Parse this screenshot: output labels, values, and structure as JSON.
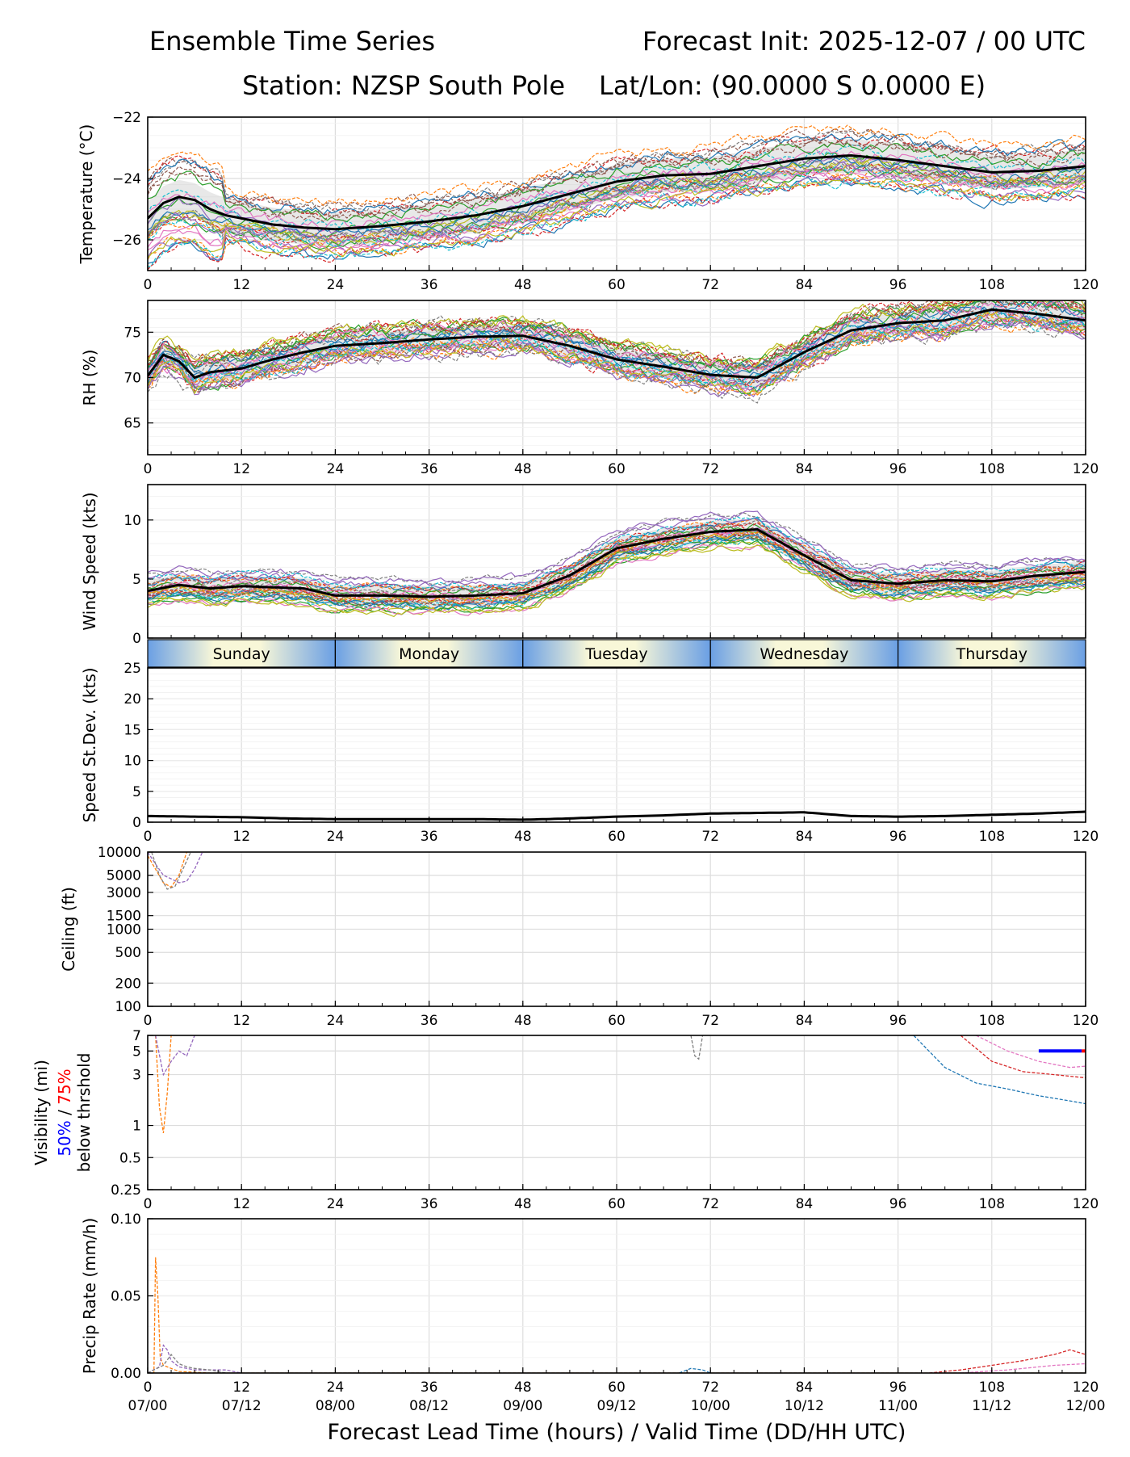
{
  "header": {
    "title_left": "Ensemble Time Series",
    "title_right": "Forecast Init: 2025-12-07 / 00 UTC",
    "station": "Station: NZSP South Pole",
    "latlon": "Lat/Lon: (90.0000 S 0.0000 E)"
  },
  "xaxis": {
    "ticks": [
      0,
      12,
      24,
      36,
      48,
      60,
      72,
      84,
      96,
      108,
      120
    ],
    "tick_labels": [
      "0",
      "12",
      "24",
      "36",
      "48",
      "60",
      "72",
      "84",
      "96",
      "108",
      "120"
    ],
    "valid_labels": [
      "07/00",
      "07/12",
      "08/00",
      "08/12",
      "09/00",
      "09/12",
      "10/00",
      "10/12",
      "11/00",
      "11/12",
      "12/00"
    ],
    "xlabel": "Forecast Lead Time (hours) / Valid Time (DD/HH UTC)"
  },
  "day_band": {
    "days": [
      "Sunday",
      "Monday",
      "Tuesday",
      "Wednesday",
      "Thursday"
    ]
  },
  "colors": {
    "mean_line": "#000000",
    "spread": "#bdbdbd",
    "visibility_50": "#0000ff",
    "visibility_75": "#ff0000",
    "ensemble": [
      "#1f77b4",
      "#ff7f0e",
      "#2ca02c",
      "#d62728",
      "#9467bd",
      "#8c564b",
      "#e377c2",
      "#7f7f7f",
      "#bcbd22",
      "#17becf"
    ]
  },
  "chart_data": [
    {
      "id": "temperature",
      "type": "line",
      "ylabel": "Temperature (°C)",
      "ylim": [
        -27,
        -22
      ],
      "yticks": [
        -26,
        -24,
        -22
      ],
      "ytick_labels": [
        "−26",
        "−24",
        "−22"
      ],
      "mean": {
        "x": [
          0,
          2,
          4,
          6,
          8,
          10,
          12,
          16,
          20,
          24,
          30,
          36,
          42,
          48,
          54,
          60,
          66,
          72,
          78,
          84,
          90,
          96,
          102,
          108,
          114,
          120
        ],
        "y": [
          -25.3,
          -24.8,
          -24.6,
          -24.7,
          -25.0,
          -25.2,
          -25.3,
          -25.5,
          -25.6,
          -25.65,
          -25.55,
          -25.4,
          -25.2,
          -24.9,
          -24.5,
          -24.1,
          -23.9,
          -23.85,
          -23.6,
          -23.35,
          -23.25,
          -23.4,
          -23.6,
          -23.8,
          -23.75,
          -23.6
        ]
      },
      "spread": 0.55,
      "members": 30
    },
    {
      "id": "rh",
      "type": "line",
      "ylabel": "RH (%)",
      "ylim": [
        61.5,
        78.5
      ],
      "yticks": [
        65,
        70,
        75
      ],
      "ytick_labels": [
        "65",
        "70",
        "75"
      ],
      "mean": {
        "x": [
          0,
          2,
          4,
          6,
          8,
          12,
          16,
          20,
          24,
          30,
          36,
          42,
          48,
          54,
          60,
          66,
          72,
          78,
          84,
          90,
          96,
          102,
          108,
          114,
          120
        ],
        "y": [
          70.2,
          72.5,
          71.8,
          70.0,
          70.6,
          71.0,
          72.0,
          72.8,
          73.5,
          73.8,
          74.2,
          74.5,
          74.6,
          73.5,
          72.0,
          71.2,
          70.3,
          70.0,
          72.8,
          75.2,
          76.0,
          76.3,
          77.5,
          77.0,
          76.3
        ]
      },
      "spread": 1.2,
      "members": 30
    },
    {
      "id": "wind",
      "type": "line",
      "ylabel": "Wind Speed (kts)",
      "ylim": [
        0,
        13
      ],
      "yticks": [
        0,
        5,
        10
      ],
      "ytick_labels": [
        "0",
        "5",
        "10"
      ],
      "mean": {
        "x": [
          0,
          4,
          8,
          12,
          16,
          20,
          24,
          30,
          36,
          42,
          48,
          54,
          60,
          66,
          72,
          78,
          84,
          90,
          96,
          102,
          108,
          114,
          120
        ],
        "y": [
          4.0,
          4.5,
          4.2,
          4.4,
          4.3,
          4.2,
          3.6,
          3.6,
          3.5,
          3.6,
          3.8,
          5.3,
          7.6,
          8.4,
          9.0,
          9.2,
          7.0,
          4.9,
          4.6,
          4.9,
          4.8,
          5.3,
          5.6
        ]
      },
      "spread": 0.9,
      "members": 30
    },
    {
      "id": "speed_sd",
      "type": "line",
      "ylabel": "Speed St.Dev. (kts)",
      "ylim": [
        0,
        25
      ],
      "yticks": [
        0,
        5,
        10,
        15,
        20,
        25
      ],
      "ytick_labels": [
        "0",
        "5",
        "10",
        "15",
        "20",
        "25"
      ],
      "mean": {
        "x": [
          0,
          6,
          12,
          18,
          24,
          30,
          36,
          42,
          48,
          54,
          60,
          66,
          72,
          78,
          84,
          90,
          96,
          102,
          108,
          114,
          120
        ],
        "y": [
          1.0,
          0.9,
          0.8,
          0.6,
          0.5,
          0.5,
          0.5,
          0.5,
          0.4,
          0.6,
          0.9,
          1.1,
          1.4,
          1.5,
          1.6,
          1.0,
          0.9,
          1.0,
          1.2,
          1.4,
          1.7
        ]
      }
    },
    {
      "id": "ceiling",
      "type": "line",
      "ylabel": "Ceiling (ft)",
      "scale": "log",
      "ylim": [
        100,
        10000
      ],
      "yticks": [
        100,
        200,
        500,
        1000,
        1500,
        3000,
        5000,
        10000
      ],
      "ytick_labels": [
        "100",
        "200",
        "500",
        "1000",
        "1500",
        "3000",
        "5000",
        "10000"
      ],
      "members": [
        {
          "x": [
            0,
            1,
            2,
            3,
            4,
            5
          ],
          "y": [
            9000,
            6000,
            4000,
            3500,
            5000,
            10000
          ]
        },
        {
          "x": [
            0,
            1,
            2,
            3,
            4,
            5,
            6,
            7
          ],
          "y": [
            10000,
            7000,
            5000,
            4500,
            4000,
            4200,
            6000,
            10000
          ]
        },
        {
          "x": [
            0.5,
            1.5,
            2.5,
            3.5,
            4.5,
            5.5
          ],
          "y": [
            10000,
            5000,
            3300,
            3600,
            6000,
            10000
          ]
        }
      ]
    },
    {
      "id": "visibility",
      "type": "line",
      "ylabel": "Visibility (mi)",
      "ylabel_50": "50%",
      "ylabel_sep": " / ",
      "ylabel_75": "75%",
      "ylabel_below": "below thrshold",
      "scale": "log",
      "ylim": [
        0.25,
        7
      ],
      "yticks": [
        0.25,
        0.5,
        1,
        3,
        5,
        7
      ],
      "ytick_labels": [
        "0.25",
        "0.5",
        "1",
        "3",
        "5",
        "7"
      ],
      "members": [
        {
          "x": [
            1,
            1.5,
            2,
            2.5,
            3
          ],
          "y": [
            7,
            1.5,
            0.85,
            2,
            7
          ]
        },
        {
          "x": [
            1,
            2,
            3,
            4,
            5,
            6
          ],
          "y": [
            7,
            3,
            4,
            5,
            4.5,
            7
          ]
        },
        {
          "x": [
            69.5,
            70,
            70.5,
            71
          ],
          "y": [
            7,
            4.5,
            4.2,
            7
          ]
        },
        {
          "x": [
            98,
            102,
            106,
            110,
            114,
            118,
            120
          ],
          "y": [
            7,
            3.5,
            2.5,
            2.2,
            1.9,
            1.7,
            1.6
          ]
        },
        {
          "x": [
            104,
            108,
            112,
            116,
            120
          ],
          "y": [
            7,
            4,
            3.2,
            3,
            2.8
          ]
        },
        {
          "x": [
            106,
            110,
            114,
            118,
            120
          ],
          "y": [
            7,
            5,
            4,
            3.5,
            3.6
          ]
        }
      ],
      "line_50": {
        "x": [
          114,
          119.5
        ],
        "y": 5
      },
      "line_75": {
        "x": [
          119.5,
          120
        ],
        "y": 5
      }
    },
    {
      "id": "precip",
      "type": "line",
      "ylabel": "Precip Rate (mm/h)",
      "ylim": [
        0,
        0.1
      ],
      "yticks": [
        0,
        0.05,
        0.1
      ],
      "ytick_labels": [
        "0.00",
        "0.05",
        "0.10"
      ],
      "members": [
        {
          "x": [
            0,
            0.8,
            1,
            1.3,
            1.6,
            2,
            3,
            4,
            8,
            120
          ],
          "y": [
            0,
            0,
            0.075,
            0.05,
            0.01,
            0.005,
            0.003,
            0.001,
            0,
            0
          ]
        },
        {
          "x": [
            0,
            1.5,
            2,
            2.5,
            3,
            4,
            6,
            10,
            12
          ],
          "y": [
            0,
            0.004,
            0.018,
            0.015,
            0.008,
            0.004,
            0.002,
            0.002,
            0
          ]
        },
        {
          "x": [
            0,
            2,
            3,
            4,
            5,
            6,
            8,
            10
          ],
          "y": [
            0,
            0.005,
            0.012,
            0.006,
            0.004,
            0.003,
            0.002,
            0
          ]
        },
        {
          "x": [
            68,
            69.5,
            71,
            72
          ],
          "y": [
            0,
            0.003,
            0.002,
            0
          ]
        },
        {
          "x": [
            100,
            104,
            108,
            112,
            116,
            118,
            120
          ],
          "y": [
            0,
            0.002,
            0.005,
            0.008,
            0.012,
            0.015,
            0.012
          ]
        },
        {
          "x": [
            104,
            110,
            116,
            120
          ],
          "y": [
            0,
            0.002,
            0.005,
            0.006
          ]
        }
      ]
    }
  ]
}
